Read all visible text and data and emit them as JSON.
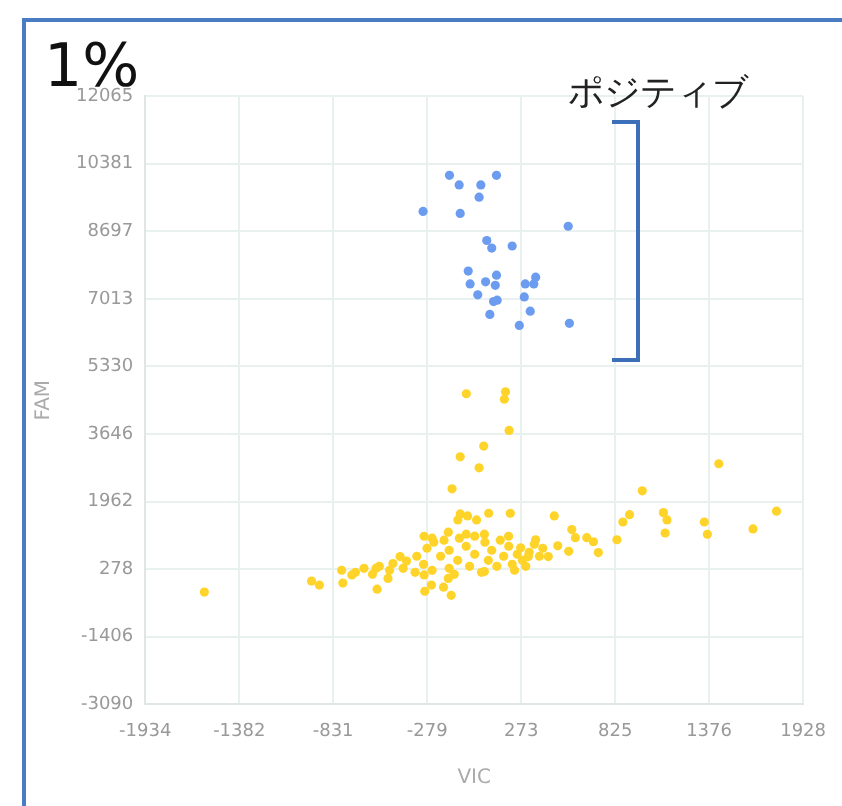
{
  "chart_data": {
    "type": "scatter",
    "title": "1%",
    "xlabel": "VIC",
    "ylabel": "FAM",
    "annotations": [
      "ポジティブ"
    ],
    "marker": "circle",
    "grid": true,
    "xlim": [
      -1934,
      1928
    ],
    "ylim": [
      -3090,
      12065
    ],
    "xticks": [
      -1934,
      -1382,
      -831,
      -279,
      273,
      825,
      1376,
      1928
    ],
    "yticks": [
      -3090,
      -1406,
      278,
      1962,
      3646,
      5330,
      7013,
      8697,
      10381,
      12065
    ],
    "series": [
      {
        "color": "#ffd42a",
        "x": [
          -1587,
          -958,
          -912,
          -49,
          181,
          174,
          202,
          53,
          -85,
          26,
          -133,
          1433,
          984,
          1772,
          1634,
          870,
          909,
          835,
          1108,
          1129,
          1118,
          1348,
          1366,
          467,
          726,
          658,
          697,
          570,
          591,
          552,
          488,
          432,
          358,
          315,
          209,
          82,
          -85,
          11,
          -42,
          -99,
          -781,
          -774,
          -573,
          -293,
          -138,
          -254,
          -183,
          -721,
          -438,
          -297,
          -155,
          57,
          199,
          270,
          234,
          57,
          -155,
          -297,
          -509,
          -579,
          -700,
          -650,
          -600,
          -560,
          -500,
          -480,
          -420,
          -400,
          -350,
          -340,
          -300,
          -280,
          -250,
          -240,
          -200,
          -180,
          -150,
          -150,
          -120,
          -100,
          -90,
          -50,
          -30,
          0,
          0,
          40,
          60,
          80,
          100,
          130,
          150,
          170,
          200,
          220,
          250,
          280,
          320,
          350,
          380,
          400,
          300,
          -250,
          -50
        ],
        "values": [
          -291,
          -17,
          -118,
          4648,
          4698,
          4511,
          3735,
          3345,
          3076,
          2802,
          2280,
          2904,
          2229,
          1722,
          1281,
          1453,
          1636,
          1012,
          1687,
          1504,
          1180,
          1453,
          1149,
          1606,
          693,
          1063,
          962,
          1266,
          1063,
          723,
          860,
          592,
          1012,
          592,
          1671,
          1671,
          1654,
          1504,
          1606,
          1504,
          252,
          -67,
          -220,
          -271,
          -372,
          -118,
          -169,
          136,
          592,
          1099,
          1200,
          1150,
          1099,
          810,
          252,
          218,
          49,
          136,
          49,
          303,
          200,
          300,
          150,
          350,
          250,
          420,
          300,
          480,
          200,
          600,
          400,
          800,
          250,
          950,
          600,
          1000,
          300,
          750,
          150,
          500,
          1050,
          850,
          350,
          650,
          1100,
          200,
          950,
          500,
          750,
          350,
          1000,
          600,
          850,
          400,
          650,
          500,
          700,
          900,
          600,
          800,
          350,
          1050,
          1150
        ]
      },
      {
        "color": "#6c9cf0",
        "x": [
          -148,
          -91,
          36,
          128,
          26,
          -303,
          -85,
          549,
          71,
          100,
          220,
          -38,
          -27,
          64,
          121,
          128,
          18,
          111,
          132,
          89,
          262,
          297,
          347,
          358,
          291,
          312,
          326,
          556
        ],
        "values": [
          10088,
          9849,
          9849,
          10088,
          9545,
          9190,
          9140,
          8820,
          8465,
          8278,
          8328,
          7705,
          7385,
          7436,
          7350,
          7603,
          7112,
          6944,
          6980,
          6625,
          6351,
          7385,
          7385,
          7553,
          7061,
          null,
          6706,
          6402
        ]
      }
    ]
  }
}
